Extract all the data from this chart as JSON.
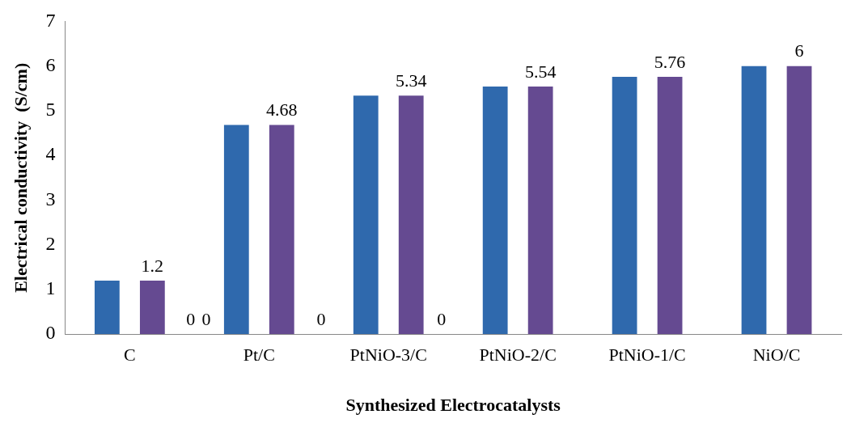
{
  "chart_data": {
    "type": "bar",
    "xlabel": "Synthesized Electrocatalysts",
    "ylabel": "Electrical conductivity  (S/cm)",
    "categories": [
      "C",
      "Pt/C",
      "PtNiO-3/C",
      "PtNiO-2/C",
      "PtNiO-1/C",
      "NiO/C"
    ],
    "series": [
      {
        "color": "#2f69ad",
        "values": [
          1.2,
          4.68,
          5.34,
          5.54,
          5.76,
          6
        ]
      },
      {
        "color": "#654a91",
        "values": [
          1.2,
          4.68,
          5.34,
          5.54,
          5.76,
          6
        ],
        "value_labels": [
          "1.2",
          "4.68",
          "5.34",
          "5.54",
          "5.76",
          "6"
        ]
      }
    ],
    "ylim": [
      0,
      7
    ],
    "yticks": [
      0,
      1,
      2,
      3,
      4,
      5,
      6,
      7
    ],
    "grid": false,
    "legend": false,
    "annotations": [
      "0",
      "0",
      "0",
      "0"
    ]
  }
}
